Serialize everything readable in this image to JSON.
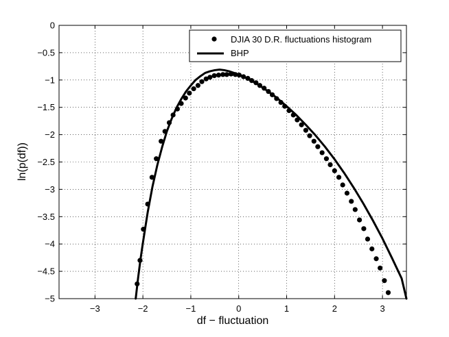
{
  "chart_data": {
    "type": "line",
    "title": "",
    "xlabel": "df − fluctuation",
    "ylabel": "ln(p(df))",
    "xlim": [
      -3.75,
      3.5
    ],
    "ylim": [
      -5,
      0
    ],
    "xticks": [
      -3,
      -2,
      -1,
      0,
      1,
      2,
      3
    ],
    "yticks": [
      0,
      -0.5,
      -1,
      -1.5,
      -2,
      -2.5,
      -3,
      -3.5,
      -4,
      -4.5,
      -5
    ],
    "xtick_labels": [
      "−3",
      "−2",
      "−1",
      "0",
      "1",
      "2",
      "3"
    ],
    "ytick_labels": [
      "0",
      "−0.5",
      "−1",
      "−1.5",
      "−2",
      "−2.5",
      "−3",
      "−3.5",
      "−4",
      "−4.5",
      "−5"
    ],
    "grid": true,
    "legend_position": "top-right",
    "series": [
      {
        "name": "DJIA 30 D.R. fluctuations histogram",
        "style": "markers",
        "color": "#000000",
        "x": [
          -2.12,
          -2.06,
          -1.99,
          -1.9,
          -1.81,
          -1.72,
          -1.62,
          -1.54,
          -1.45,
          -1.37,
          -1.28,
          -1.2,
          -1.11,
          -1.03,
          -0.94,
          -0.85,
          -0.77,
          -0.68,
          -0.6,
          -0.51,
          -0.42,
          -0.33,
          -0.25,
          -0.16,
          -0.07,
          0.01,
          0.1,
          0.19,
          0.27,
          0.36,
          0.44,
          0.53,
          0.62,
          0.7,
          0.79,
          0.88,
          0.96,
          1.05,
          1.14,
          1.22,
          1.31,
          1.4,
          1.48,
          1.57,
          1.65,
          1.74,
          1.83,
          1.91,
          2.0,
          2.09,
          2.17,
          2.26,
          2.35,
          2.43,
          2.52,
          2.61,
          2.69,
          2.78,
          2.87,
          2.95,
          3.04,
          3.12
        ],
        "y": [
          -4.73,
          -4.3,
          -3.73,
          -3.27,
          -2.78,
          -2.44,
          -2.12,
          -1.94,
          -1.78,
          -1.64,
          -1.53,
          -1.43,
          -1.33,
          -1.24,
          -1.16,
          -1.1,
          -1.03,
          -0.98,
          -0.95,
          -0.92,
          -0.91,
          -0.9,
          -0.9,
          -0.89,
          -0.9,
          -0.91,
          -0.94,
          -0.97,
          -1.01,
          -1.05,
          -1.1,
          -1.15,
          -1.21,
          -1.27,
          -1.34,
          -1.41,
          -1.48,
          -1.56,
          -1.64,
          -1.73,
          -1.82,
          -1.92,
          -2.02,
          -2.12,
          -2.22,
          -2.33,
          -2.44,
          -2.55,
          -2.66,
          -2.78,
          -2.92,
          -3.07,
          -3.22,
          -3.37,
          -3.56,
          -3.72,
          -3.91,
          -4.09,
          -4.27,
          -4.44,
          -4.67,
          -4.89
        ]
      },
      {
        "name": "BHP",
        "style": "line",
        "color": "#000000",
        "x": [
          -2.15,
          -2.1,
          -2.05,
          -2.0,
          -1.9,
          -1.8,
          -1.7,
          -1.6,
          -1.5,
          -1.4,
          -1.3,
          -1.2,
          -1.1,
          -1.0,
          -0.9,
          -0.8,
          -0.7,
          -0.6,
          -0.5,
          -0.4,
          -0.3,
          -0.2,
          -0.1,
          0.0,
          0.2,
          0.4,
          0.6,
          0.8,
          1.0,
          1.2,
          1.4,
          1.6,
          1.8,
          2.0,
          2.2,
          2.4,
          2.6,
          2.8,
          3.0,
          3.2,
          3.4,
          3.5
        ],
        "y": [
          -5.0,
          -4.62,
          -4.28,
          -3.98,
          -3.42,
          -2.95,
          -2.56,
          -2.23,
          -1.94,
          -1.71,
          -1.51,
          -1.35,
          -1.21,
          -1.1,
          -1.0,
          -0.93,
          -0.87,
          -0.84,
          -0.82,
          -0.81,
          -0.82,
          -0.84,
          -0.87,
          -0.9,
          -0.98,
          -1.08,
          -1.2,
          -1.33,
          -1.48,
          -1.64,
          -1.82,
          -2.01,
          -2.22,
          -2.45,
          -2.7,
          -2.97,
          -3.26,
          -3.57,
          -3.9,
          -4.26,
          -4.63,
          -5.0
        ]
      }
    ]
  }
}
